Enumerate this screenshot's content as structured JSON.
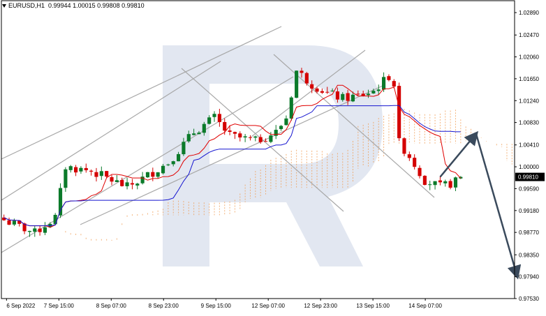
{
  "header": {
    "symbol": "EURUSD,H1",
    "ohlc": "0.99944 1.00015 0.99808 0.99810"
  },
  "colors": {
    "bull": "#0b7a2a",
    "bear": "#d40000",
    "tenkan": "#e00000",
    "kijun": "#1515d0",
    "cloud": "#f09a50",
    "trendline": "#a8a8a8",
    "arrow": "#3a4a5c",
    "watermark": "#dde3ef",
    "price_tag_bg": "#000000"
  },
  "watermark_icon": "broker-logo-watermark",
  "price_tag": "0.99810",
  "chart_data": {
    "type": "candlestick",
    "title": "",
    "y_ticks": [
      "1.02890",
      "1.02470",
      "1.02060",
      "1.01650",
      "1.01240",
      "1.00830",
      "1.00410",
      "1.00000",
      "0.99590",
      "0.99180",
      "0.98770",
      "0.98350",
      "0.97940",
      "0.97530"
    ],
    "x_ticks": [
      "6 Sep 2022",
      "7 Sep 15:00",
      "8 Sep 07:00",
      "8 Sep 23:00",
      "9 Sep 15:00",
      "12 Sep 07:00",
      "12 Sep 23:00",
      "13 Sep 15:00",
      "14 Sep 07:00"
    ],
    "ylim": [
      0.9753,
      1.031
    ],
    "bar_count": 100,
    "forecast_path": [
      [
        85,
        0.9981
      ],
      [
        92,
        1.0062
      ],
      [
        100,
        0.9795
      ]
    ]
  }
}
